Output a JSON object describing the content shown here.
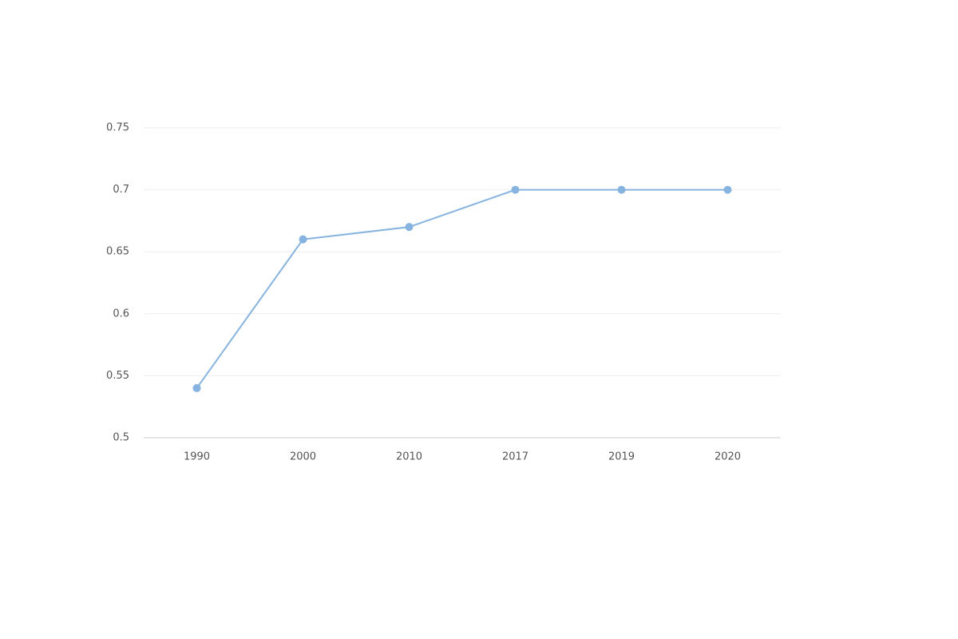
{
  "chart_data": {
    "type": "line",
    "categories": [
      "1990",
      "2000",
      "2010",
      "2017",
      "2019",
      "2020"
    ],
    "values": [
      0.54,
      0.66,
      0.67,
      0.7,
      0.7,
      0.7
    ],
    "color": "#86b3df",
    "ylim": [
      0.5,
      0.75
    ],
    "yticks": [
      0.5,
      0.55,
      0.6,
      0.65,
      0.7,
      0.75
    ],
    "grid": true
  }
}
